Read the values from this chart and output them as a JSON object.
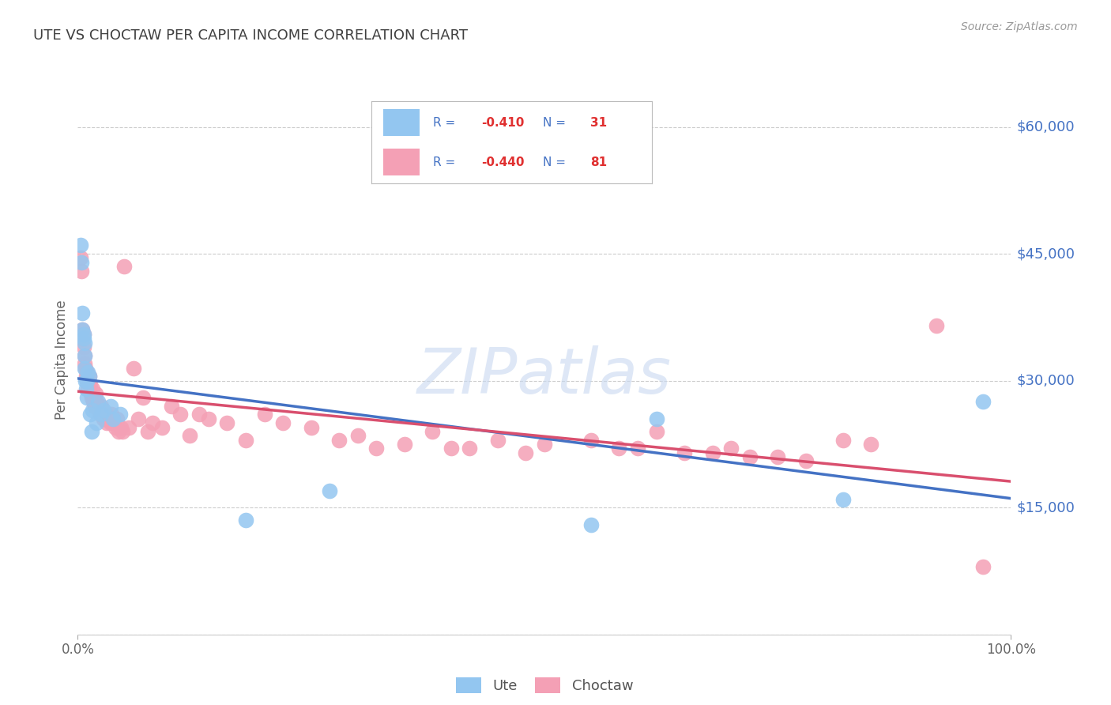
{
  "title": "UTE VS CHOCTAW PER CAPITA INCOME CORRELATION CHART",
  "source": "Source: ZipAtlas.com",
  "ylabel": "Per Capita Income",
  "watermark": "ZIPatlas",
  "xlim": [
    0,
    1.0
  ],
  "ylim": [
    0,
    65000
  ],
  "yticks": [
    0,
    15000,
    30000,
    45000,
    60000
  ],
  "xtick_labels": [
    "0.0%",
    "100.0%"
  ],
  "ute_color": "#93c6f0",
  "choctaw_color": "#f4a0b5",
  "ute_line_color": "#4472c4",
  "choctaw_line_color": "#d94f6e",
  "bg_color": "#ffffff",
  "grid_color": "#cccccc",
  "title_color": "#404040",
  "axis_label_color": "#666666",
  "right_tick_color": "#4472c4",
  "legend_text_color": "#4472c4",
  "legend_val_color": "#e03030",
  "watermark_color": "#c8d8f0",
  "ute_x": [
    0.003,
    0.004,
    0.005,
    0.005,
    0.006,
    0.006,
    0.007,
    0.007,
    0.007,
    0.008,
    0.009,
    0.01,
    0.01,
    0.011,
    0.012,
    0.013,
    0.015,
    0.016,
    0.02,
    0.022,
    0.025,
    0.028,
    0.035,
    0.038,
    0.045,
    0.18,
    0.27,
    0.55,
    0.62,
    0.82,
    0.97
  ],
  "ute_y": [
    46000,
    44000,
    38000,
    36000,
    35500,
    35000,
    34500,
    33000,
    31500,
    30000,
    29000,
    30000,
    28000,
    31000,
    30500,
    26000,
    24000,
    26500,
    25000,
    27500,
    26000,
    26500,
    27000,
    25500,
    26000,
    13500,
    17000,
    13000,
    25500,
    16000,
    27500
  ],
  "choctaw_x": [
    0.003,
    0.004,
    0.005,
    0.005,
    0.006,
    0.006,
    0.007,
    0.007,
    0.008,
    0.009,
    0.01,
    0.01,
    0.011,
    0.012,
    0.013,
    0.014,
    0.015,
    0.016,
    0.017,
    0.018,
    0.019,
    0.02,
    0.022,
    0.023,
    0.024,
    0.025,
    0.026,
    0.028,
    0.03,
    0.031,
    0.033,
    0.035,
    0.036,
    0.038,
    0.04,
    0.042,
    0.044,
    0.046,
    0.048,
    0.05,
    0.055,
    0.06,
    0.065,
    0.07,
    0.075,
    0.08,
    0.09,
    0.1,
    0.11,
    0.12,
    0.13,
    0.14,
    0.16,
    0.18,
    0.2,
    0.22,
    0.25,
    0.28,
    0.3,
    0.32,
    0.35,
    0.38,
    0.4,
    0.42,
    0.45,
    0.48,
    0.5,
    0.55,
    0.58,
    0.6,
    0.62,
    0.65,
    0.68,
    0.7,
    0.72,
    0.75,
    0.78,
    0.82,
    0.85,
    0.92,
    0.97
  ],
  "choctaw_y": [
    44500,
    43000,
    36000,
    35000,
    35500,
    34000,
    33000,
    32000,
    31500,
    30500,
    31000,
    30000,
    29000,
    30500,
    29500,
    28500,
    28000,
    29000,
    27500,
    27000,
    28500,
    27500,
    27000,
    26500,
    26000,
    27000,
    26000,
    25500,
    26000,
    25000,
    25500,
    25000,
    26000,
    25000,
    24500,
    25500,
    24000,
    24500,
    24000,
    43500,
    24500,
    31500,
    25500,
    28000,
    24000,
    25000,
    24500,
    27000,
    26000,
    23500,
    26000,
    25500,
    25000,
    23000,
    26000,
    25000,
    24500,
    23000,
    23500,
    22000,
    22500,
    24000,
    22000,
    22000,
    23000,
    21500,
    22500,
    23000,
    22000,
    22000,
    24000,
    21500,
    21500,
    22000,
    21000,
    21000,
    20500,
    23000,
    22500,
    36500,
    8000
  ]
}
